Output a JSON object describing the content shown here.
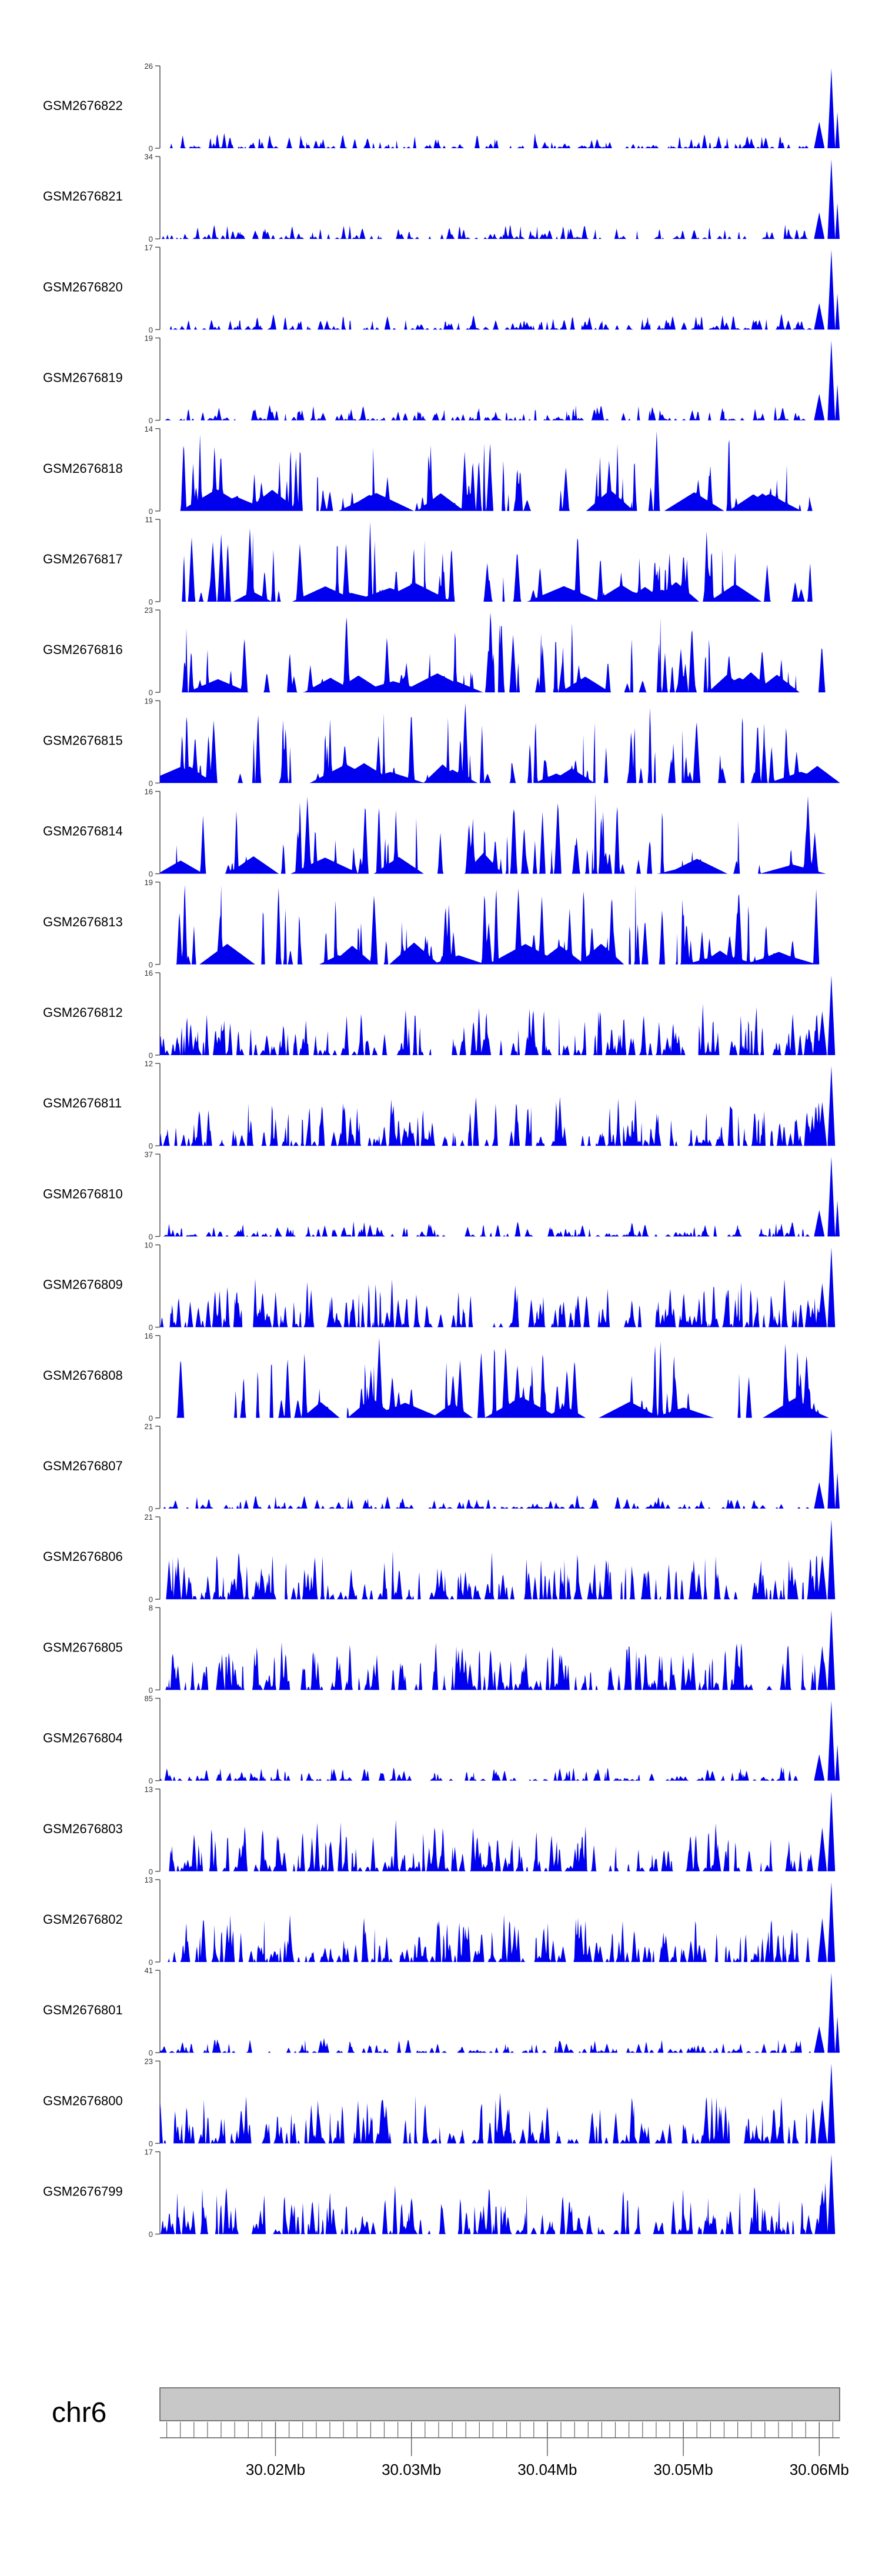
{
  "chart_data": {
    "type": "area",
    "title": "",
    "xlabel": "",
    "ylabel": "",
    "fill_color": "#0000ee",
    "axis_color": "#555555",
    "chromosome": "chr6",
    "ideogram_color": "#c8c8c8",
    "x_range_mb": [
      30.0115,
      30.0615
    ],
    "x_tick_values_mb": [
      30.02,
      30.03,
      30.04,
      30.05,
      30.06
    ],
    "x_tick_labels": [
      "30.02Mb",
      "30.03Mb",
      "30.04Mb",
      "30.05Mb",
      "30.06Mb"
    ],
    "tracks": [
      {
        "name": "GSM2676822",
        "ymax": 26,
        "ymax_label": "26",
        "ymin_label": "0",
        "pattern": "peak_end"
      },
      {
        "name": "GSM2676821",
        "ymax": 34,
        "ymax_label": "34",
        "ymin_label": "0",
        "pattern": "peak_end"
      },
      {
        "name": "GSM2676820",
        "ymax": 17,
        "ymax_label": "17",
        "ymin_label": "0",
        "pattern": "peak_end"
      },
      {
        "name": "GSM2676819",
        "ymax": 19,
        "ymax_label": "19",
        "ymin_label": "0",
        "pattern": "peak_end"
      },
      {
        "name": "GSM2676818",
        "ymax": 14,
        "ymax_label": "14",
        "ymin_label": "0",
        "pattern": "sparse"
      },
      {
        "name": "GSM2676817",
        "ymax": 11,
        "ymax_label": "11",
        "ymin_label": "0",
        "pattern": "sparse"
      },
      {
        "name": "GSM2676816",
        "ymax": 23,
        "ymax_label": "23",
        "ymin_label": "0",
        "pattern": "sparse"
      },
      {
        "name": "GSM2676815",
        "ymax": 19,
        "ymax_label": "19",
        "ymin_label": "0",
        "pattern": "sparse"
      },
      {
        "name": "GSM2676814",
        "ymax": 16,
        "ymax_label": "16",
        "ymin_label": "0",
        "pattern": "sparse"
      },
      {
        "name": "GSM2676813",
        "ymax": 19,
        "ymax_label": "19",
        "ymin_label": "0",
        "pattern": "sparse"
      },
      {
        "name": "GSM2676812",
        "ymax": 16,
        "ymax_label": "16",
        "ymin_label": "0",
        "pattern": "dense"
      },
      {
        "name": "GSM2676811",
        "ymax": 12,
        "ymax_label": "12",
        "ymin_label": "0",
        "pattern": "dense"
      },
      {
        "name": "GSM2676810",
        "ymax": 37,
        "ymax_label": "37",
        "ymin_label": "0",
        "pattern": "peak_end"
      },
      {
        "name": "GSM2676809",
        "ymax": 10,
        "ymax_label": "10",
        "ymin_label": "0",
        "pattern": "dense"
      },
      {
        "name": "GSM2676808",
        "ymax": 16,
        "ymax_label": "16",
        "ymin_label": "0",
        "pattern": "sparse"
      },
      {
        "name": "GSM2676807",
        "ymax": 21,
        "ymax_label": "21",
        "ymin_label": "0",
        "pattern": "peak_end"
      },
      {
        "name": "GSM2676806",
        "ymax": 21,
        "ymax_label": "21",
        "ymin_label": "0",
        "pattern": "dense"
      },
      {
        "name": "GSM2676805",
        "ymax": 8,
        "ymax_label": "8",
        "ymin_label": "0",
        "pattern": "dense"
      },
      {
        "name": "GSM2676804",
        "ymax": 85,
        "ymax_label": "85",
        "ymin_label": "0",
        "pattern": "peak_end"
      },
      {
        "name": "GSM2676803",
        "ymax": 13,
        "ymax_label": "13",
        "ymin_label": "0",
        "pattern": "dense"
      },
      {
        "name": "GSM2676802",
        "ymax": 13,
        "ymax_label": "13",
        "ymin_label": "0",
        "pattern": "dense"
      },
      {
        "name": "GSM2676801",
        "ymax": 41,
        "ymax_label": "41",
        "ymin_label": "0",
        "pattern": "peak_end"
      },
      {
        "name": "GSM2676800",
        "ymax": 23,
        "ymax_label": "23",
        "ymin_label": "0",
        "pattern": "dense"
      },
      {
        "name": "GSM2676799",
        "ymax": 17,
        "ymax_label": "17",
        "ymin_label": "0",
        "pattern": "dense"
      }
    ]
  }
}
